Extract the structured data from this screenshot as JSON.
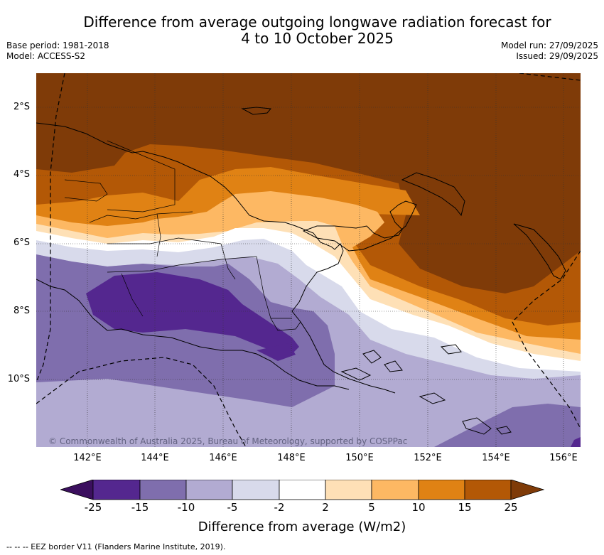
{
  "title_line1": "Difference from average outgoing longwave radiation forecast for",
  "title_line2": "4 to 10 October 2025",
  "base_period": "Base period: 1981-2018",
  "model": "Model: ACCESS-S2",
  "model_run": "Model run: 27/09/2025",
  "issued": "Issued: 29/09/2025",
  "lat_labels": [
    "2°S",
    "4°S",
    "6°S",
    "8°S",
    "10°S"
  ],
  "lon_labels": [
    "142°E",
    "144°E",
    "146°E",
    "148°E",
    "150°E",
    "152°E",
    "154°E",
    "156°E"
  ],
  "copyright": "© Commonwealth of Australia 2025, Bureau of Meteorology, supported by COSPPac",
  "colorbar": {
    "ticks": [
      "-25",
      "-15",
      "-10",
      "-5",
      "-2",
      "2",
      "5",
      "10",
      "15",
      "25"
    ],
    "colors": [
      "#3b0f5e",
      "#54278f",
      "#7f6ead",
      "#b2abd2",
      "#d8daeb",
      "#ffffff",
      "#fee0b6",
      "#fdb863",
      "#e08214",
      "#b35806",
      "#7f3b08"
    ],
    "label": "Difference from average (W/m2)"
  },
  "footnote": "-- -- -- EEZ border V11 (Flanders Marine Institute, 2019)."
}
